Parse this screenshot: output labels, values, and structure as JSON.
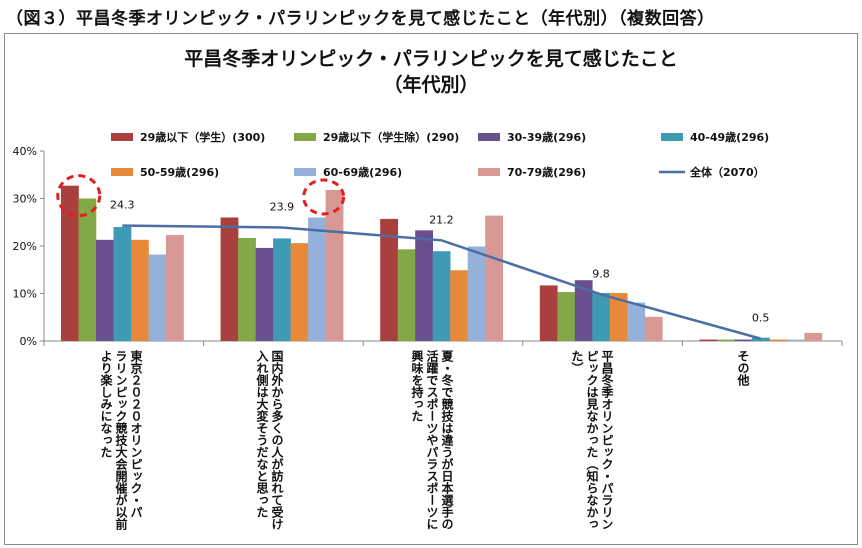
{
  "figure_caption": "（図３）平昌冬季オリンピック・パラリンピックを見て感じたこと（年代別）（複数回答）",
  "chart_data": {
    "type": "bar",
    "title_line1": "平昌冬季オリンピック・パラリンピックを見て感じたこと",
    "title_line2": "（年代別）",
    "categories": [
      "東京２０２０オリンピック・パ\nラリンピック競技大会開催が以前\nより楽しみになった",
      "国内外から多くの人が訪れて受け\n入れ側は大変そうだなと思った",
      "夏・冬で競技は違うが日本選手の\n活躍でスポーツやパラスポーツに\n興味を持った",
      "平昌冬季オリンピック・パラリン\nピックは見なかった（知らなかっ\nた）",
      "その他"
    ],
    "y_ticks": [
      "0%",
      "10%",
      "20%",
      "30%",
      "40%"
    ],
    "ylim": [
      0,
      40
    ],
    "grid": false,
    "legend_position": "top",
    "series": [
      {
        "name": "29歳以下（学生）(300)",
        "color": "#a9403e",
        "values": [
          32.7,
          26.0,
          25.7,
          11.7,
          0.3
        ]
      },
      {
        "name": "29歳以下（学生除）(290)",
        "color": "#83a846",
        "values": [
          30.0,
          21.7,
          19.3,
          10.3,
          0.3
        ]
      },
      {
        "name": "30-39歳(296)",
        "color": "#6a4f8f",
        "values": [
          21.3,
          19.6,
          23.3,
          12.8,
          0.3
        ]
      },
      {
        "name": "40-49歳(296)",
        "color": "#3e9bb3",
        "values": [
          24.0,
          21.6,
          18.9,
          10.1,
          0.7
        ]
      },
      {
        "name": "50-59歳(296)",
        "color": "#e8893a",
        "values": [
          21.3,
          20.6,
          14.9,
          10.1,
          0.3
        ]
      },
      {
        "name": "60-69歳(296)",
        "color": "#95b1d9",
        "values": [
          18.2,
          26.0,
          19.9,
          8.1,
          0.3
        ]
      },
      {
        "name": "70-79歳(296)",
        "color": "#d79896",
        "values": [
          22.3,
          31.8,
          26.4,
          5.1,
          1.7
        ]
      }
    ],
    "total_line": {
      "name": "全体（2070）",
      "color": "#4a6fa5",
      "values": [
        24.3,
        23.9,
        21.2,
        9.8,
        0.5
      ],
      "labels": [
        "24.3",
        "23.9",
        "21.2",
        "9.8",
        "0.5"
      ]
    },
    "highlight_circle_color": "#e02020"
  }
}
